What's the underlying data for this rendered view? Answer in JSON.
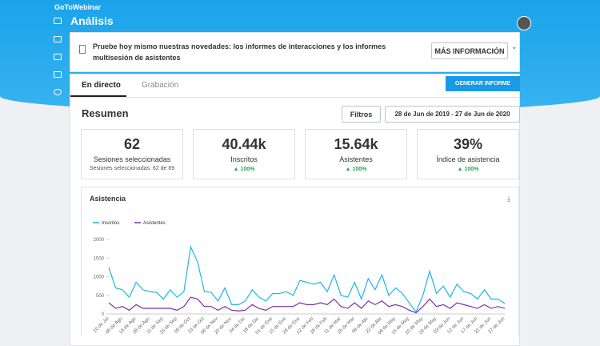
{
  "header": {
    "brand": "GoToWebinar",
    "title": "Análisis"
  },
  "banner": {
    "text": "Pruebe hoy mismo nuestras novedades: los informes de interacciones y los informes multisesión de asistentes",
    "button": "MÁS INFORMACIÓN"
  },
  "tabs": [
    "En directo",
    "Grabación"
  ],
  "generate_button": "GENERAR INFORME",
  "summary": {
    "title": "Resumen",
    "filter_button": "Filtros",
    "date_range": "28 de Jun de 2019 - 27 de Jun de 2020"
  },
  "cards": [
    {
      "value": "62",
      "label": "Sesiones seleccionadas",
      "sub": "Sesiones seleccionadas: 62 de 89"
    },
    {
      "value": "40.44k",
      "label": "Inscritos",
      "trend": "100%"
    },
    {
      "value": "15.64k",
      "label": "Asistentes",
      "trend": "100%"
    },
    {
      "value": "39%",
      "label": "Índice de asistencia",
      "trend": "100%"
    }
  ],
  "chart_data": {
    "type": "line",
    "title": "Asistencia",
    "categories": [
      "10 de Jul",
      null,
      "06 de Ago",
      null,
      "16 de Ago",
      null,
      "28 de Ago",
      null,
      "11 de Sep",
      null,
      "25 de Sep",
      null,
      "09 de Oct",
      null,
      "23 de Oct",
      null,
      "06 de Nov",
      null,
      "20 de Nov",
      null,
      "04 de Dic",
      null,
      "18 de Dic",
      null,
      "01 de Ene",
      null,
      "15 de Ene",
      null,
      "29 de Ene",
      null,
      "12 de Feb",
      null,
      "26 de Feb",
      null,
      "11 de Mar",
      null,
      "25 de Mar",
      null,
      "08 de Abr",
      null,
      "22 de Abr",
      null,
      "06 de May",
      null,
      "15 de May",
      null,
      "20 de May",
      null,
      "29 de May",
      null,
      "03 de Jun",
      null,
      "12 de Jun",
      null,
      "17 de Jun",
      null,
      "22 de Jun",
      null,
      "27 de Jun"
    ],
    "series": [
      {
        "name": "Inscritos",
        "color": "#1fb6e0",
        "values": [
          1250,
          700,
          650,
          450,
          850,
          650,
          600,
          580,
          400,
          650,
          450,
          600,
          1800,
          1400,
          600,
          580,
          350,
          700,
          250,
          250,
          350,
          650,
          450,
          350,
          550,
          550,
          600,
          500,
          900,
          850,
          800,
          850,
          600,
          1050,
          500,
          450,
          850,
          400,
          950,
          650,
          1050,
          500,
          700,
          550,
          300,
          50,
          500,
          1150,
          550,
          750,
          450,
          800,
          600,
          550,
          400,
          650,
          400,
          400,
          280
        ]
      },
      {
        "name": "Asistentes",
        "color": "#7b2fa8",
        "values": [
          300,
          150,
          200,
          100,
          250,
          150,
          150,
          150,
          150,
          150,
          100,
          200,
          450,
          400,
          200,
          200,
          100,
          200,
          100,
          80,
          100,
          250,
          150,
          100,
          200,
          200,
          200,
          200,
          300,
          250,
          250,
          300,
          250,
          400,
          200,
          150,
          300,
          150,
          350,
          250,
          350,
          200,
          250,
          200,
          100,
          30,
          200,
          400,
          200,
          250,
          150,
          300,
          250,
          200,
          150,
          250,
          150,
          200,
          150
        ]
      }
    ],
    "ylim": [
      0,
      2000
    ],
    "yticks": [
      0,
      500,
      1000,
      1500,
      2000
    ],
    "grid": false,
    "legend": "top-left"
  }
}
